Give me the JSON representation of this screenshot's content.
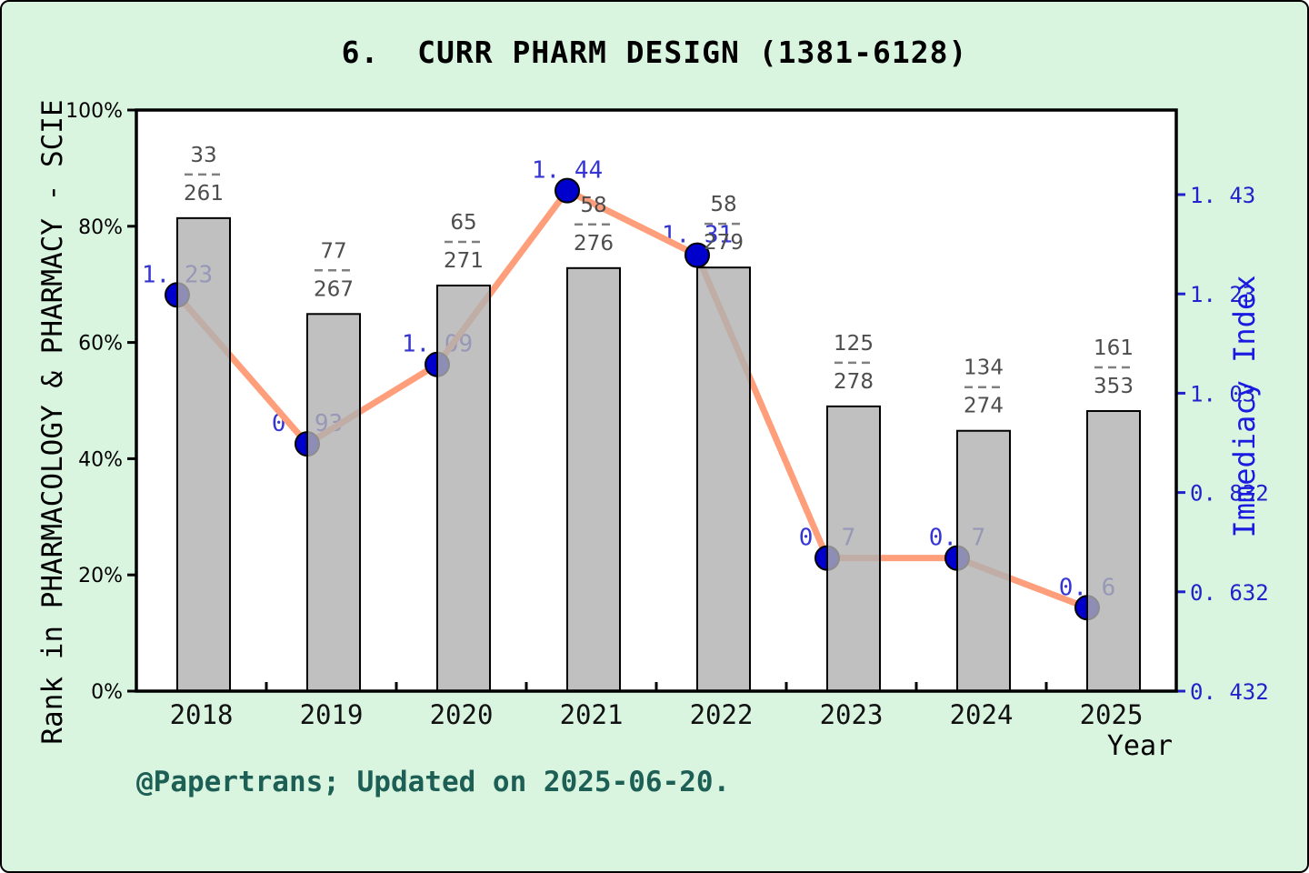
{
  "title": "6.  CURR PHARM DESIGN (1381-6128)",
  "footer": "@Papertrans; Updated on 2025-06-20.",
  "chart_data": {
    "type": "bar+line",
    "categories": [
      "2018",
      "2019",
      "2020",
      "2021",
      "2022",
      "2023",
      "2024",
      "2025"
    ],
    "xlabel": "Year",
    "left_axis": {
      "label": "Rank in PHARMACOLOGY & PHARMACY - SCIE",
      "ticks": [
        "0%",
        "20%",
        "40%",
        "60%",
        "80%",
        "100%"
      ],
      "range": [
        0,
        100
      ],
      "grid": false
    },
    "right_axis": {
      "label": "Immediacy Index",
      "min": 0.432,
      "ticks": [
        {
          "value": 0.432,
          "label": "0. 432"
        },
        {
          "value": 0.632,
          "label": "0. 632"
        },
        {
          "value": 0.832,
          "label": "0. 832"
        },
        {
          "value": 1.032,
          "label": "1. 03"
        },
        {
          "value": 1.232,
          "label": "1. 23"
        },
        {
          "value": 1.432,
          "label": "1. 43"
        }
      ]
    },
    "bars": {
      "name": "Rank in category (rank/total)",
      "fractions": [
        {
          "numerator": "33",
          "denominator": "261"
        },
        {
          "numerator": "77",
          "denominator": "267"
        },
        {
          "numerator": "65",
          "denominator": "271"
        },
        {
          "numerator": "58",
          "denominator": "276"
        },
        {
          "numerator": "58",
          "denominator": "279"
        },
        {
          "numerator": "125",
          "denominator": "278"
        },
        {
          "numerator": "134",
          "denominator": "274"
        },
        {
          "numerator": "161",
          "denominator": "353"
        }
      ],
      "height_pct": [
        81.4,
        64.9,
        69.8,
        72.8,
        72.9,
        49.0,
        44.8,
        48.2
      ]
    },
    "line": {
      "name": "Immediacy Index",
      "values": [
        1.23,
        0.93,
        1.09,
        1.44,
        1.31,
        0.7,
        0.7,
        0.6
      ],
      "labels": [
        "1. 23",
        "0. 93",
        "1. 09",
        "1. 44",
        "1. 31",
        "0. 7",
        "0. 7",
        "0. 6"
      ]
    }
  },
  "colors": {
    "background": "#d9f5e0",
    "plot_background": "#ffffff",
    "frame": "#000000",
    "bar_fill": "#b0b0b0",
    "bar_border": "#000000",
    "line": "#ff9e7b",
    "marker": "#0000cd",
    "marker_border": "#000000",
    "value_label": "#3535d3",
    "right_axis": "#2222cc",
    "fraction_label": "#4d4d4d",
    "fraction_dash": "#808080",
    "footer": "#1e5f55",
    "title": "#000000"
  }
}
